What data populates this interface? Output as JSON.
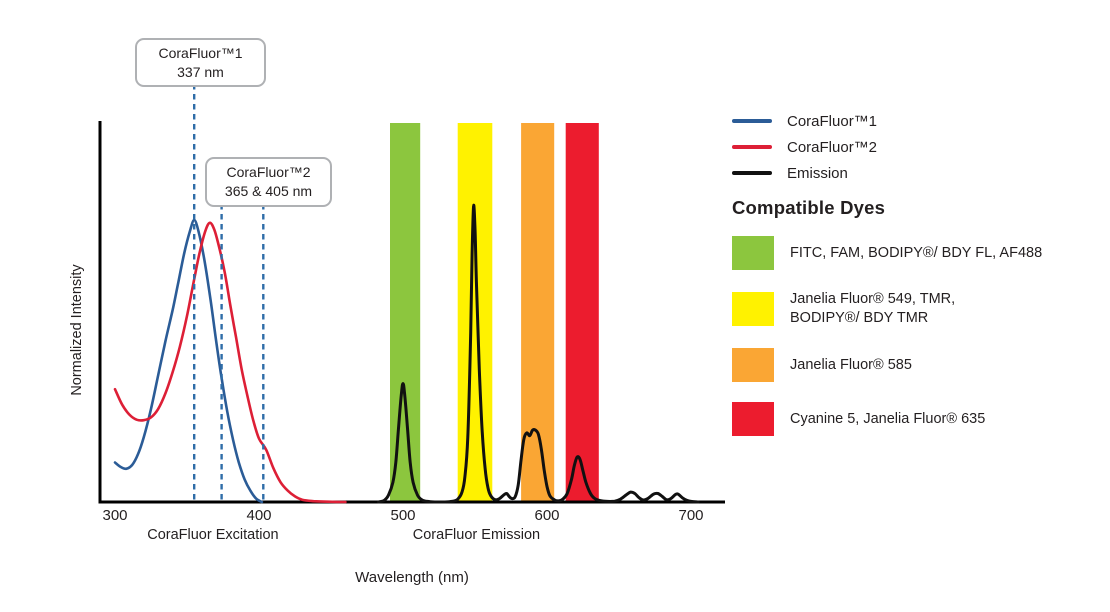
{
  "chart_data": {
    "type": "line",
    "xlabel": "Wavelength (nm)",
    "ylabel": "Normalized Intensity",
    "x_ticks": [
      300,
      400,
      500,
      600,
      700
    ],
    "x_range": [
      290,
      723
    ],
    "ylim": [
      0,
      1.35
    ],
    "grid": false,
    "axis_group_labels": [
      {
        "label": "CoraFluor Excitation",
        "center_nm": 368
      },
      {
        "label": "CoraFluor Emission",
        "center_nm": 551
      }
    ],
    "annotation_line_color": "#2f6da8",
    "annotations": [
      {
        "title": "CoraFluor™1",
        "subtitle": "337 nm",
        "lines_nm": [
          355
        ]
      },
      {
        "title": "CoraFluor™2",
        "subtitle": "365 & 405 nm",
        "lines_nm": [
          374,
          403
        ]
      }
    ],
    "bands": [
      {
        "nm": [
          491,
          512
        ],
        "color": "#8cc63e",
        "dyes": "FITC, FAM, BODIPY®/ BDY FL, AF488"
      },
      {
        "nm": [
          538,
          562
        ],
        "color": "#fff200",
        "dyes": "Janelia Fluor® 549, TMR,\nBODIPY®/ BDY TMR"
      },
      {
        "nm": [
          582,
          605
        ],
        "color": "#faa634",
        "dyes": "Janelia Fluor® 585"
      },
      {
        "nm": [
          613,
          636
        ],
        "color": "#ec1c2e",
        "dyes": "Cyanine 5, Janelia Fluor® 635"
      }
    ],
    "series": [
      {
        "name": "CoraFluor™1",
        "color": "#2b5c97",
        "points": [
          [
            300,
            0.14
          ],
          [
            304,
            0.124
          ],
          [
            308,
            0.118
          ],
          [
            312,
            0.132
          ],
          [
            316,
            0.17
          ],
          [
            320,
            0.23
          ],
          [
            325,
            0.33
          ],
          [
            330,
            0.45
          ],
          [
            335,
            0.57
          ],
          [
            340,
            0.68
          ],
          [
            344,
            0.78
          ],
          [
            348,
            0.88
          ],
          [
            352,
            0.96
          ],
          [
            355,
            1.0
          ],
          [
            358,
            0.96
          ],
          [
            362,
            0.86
          ],
          [
            366,
            0.73
          ],
          [
            370,
            0.58
          ],
          [
            374,
            0.44
          ],
          [
            378,
            0.32
          ],
          [
            382,
            0.22
          ],
          [
            386,
            0.14
          ],
          [
            390,
            0.08
          ],
          [
            394,
            0.04
          ],
          [
            398,
            0.012
          ],
          [
            402,
            0
          ]
        ]
      },
      {
        "name": "CoraFluor™2",
        "color": "#dd1f36",
        "points": [
          [
            300,
            0.4
          ],
          [
            305,
            0.345
          ],
          [
            310,
            0.31
          ],
          [
            315,
            0.292
          ],
          [
            320,
            0.29
          ],
          [
            325,
            0.3
          ],
          [
            330,
            0.33
          ],
          [
            335,
            0.385
          ],
          [
            340,
            0.46
          ],
          [
            345,
            0.55
          ],
          [
            350,
            0.66
          ],
          [
            355,
            0.79
          ],
          [
            359,
            0.89
          ],
          [
            363,
            0.965
          ],
          [
            366,
            0.99
          ],
          [
            369,
            0.965
          ],
          [
            372,
            0.91
          ],
          [
            376,
            0.82
          ],
          [
            380,
            0.7
          ],
          [
            384,
            0.585
          ],
          [
            388,
            0.47
          ],
          [
            392,
            0.375
          ],
          [
            396,
            0.29
          ],
          [
            400,
            0.225
          ],
          [
            405,
            0.185
          ],
          [
            410,
            0.12
          ],
          [
            415,
            0.07
          ],
          [
            420,
            0.04
          ],
          [
            425,
            0.02
          ],
          [
            430,
            0.008
          ],
          [
            438,
            0.003
          ],
          [
            448,
            0.001
          ],
          [
            460,
            0
          ]
        ]
      },
      {
        "name": "Emission",
        "color": "#111111",
        "points": [
          [
            483,
            0
          ],
          [
            487,
            0.006
          ],
          [
            490,
            0.025
          ],
          [
            493,
            0.07
          ],
          [
            495,
            0.14
          ],
          [
            497,
            0.27
          ],
          [
            499,
            0.39
          ],
          [
            500,
            0.42
          ],
          [
            501,
            0.39
          ],
          [
            503,
            0.27
          ],
          [
            505,
            0.14
          ],
          [
            507,
            0.07
          ],
          [
            510,
            0.025
          ],
          [
            513,
            0.008
          ],
          [
            517,
            0.002
          ],
          [
            522,
            0
          ],
          [
            528,
            0
          ],
          [
            534,
            0.002
          ],
          [
            538,
            0.01
          ],
          [
            541,
            0.035
          ],
          [
            543,
            0.09
          ],
          [
            545,
            0.23
          ],
          [
            547,
            0.6
          ],
          [
            548,
            0.88
          ],
          [
            549,
            1.05
          ],
          [
            550,
            0.97
          ],
          [
            551,
            0.78
          ],
          [
            553,
            0.47
          ],
          [
            555,
            0.25
          ],
          [
            557,
            0.12
          ],
          [
            559,
            0.05
          ],
          [
            561,
            0.022
          ],
          [
            564,
            0.008
          ],
          [
            567,
            0.012
          ],
          [
            570,
            0.025
          ],
          [
            572,
            0.03
          ],
          [
            574,
            0.018
          ],
          [
            576,
            0.012
          ],
          [
            578,
            0.02
          ],
          [
            580,
            0.06
          ],
          [
            582,
            0.15
          ],
          [
            584,
            0.225
          ],
          [
            586,
            0.245
          ],
          [
            588,
            0.235
          ],
          [
            590,
            0.255
          ],
          [
            592,
            0.255
          ],
          [
            594,
            0.24
          ],
          [
            596,
            0.19
          ],
          [
            598,
            0.115
          ],
          [
            600,
            0.055
          ],
          [
            602,
            0.022
          ],
          [
            605,
            0.008
          ],
          [
            608,
            0.004
          ],
          [
            611,
            0.01
          ],
          [
            614,
            0.03
          ],
          [
            617,
            0.08
          ],
          [
            619,
            0.13
          ],
          [
            621,
            0.16
          ],
          [
            623,
            0.15
          ],
          [
            625,
            0.11
          ],
          [
            627,
            0.07
          ],
          [
            630,
            0.032
          ],
          [
            633,
            0.013
          ],
          [
            637,
            0.005
          ],
          [
            642,
            0.002
          ],
          [
            647,
            0.003
          ],
          [
            651,
            0.01
          ],
          [
            655,
            0.025
          ],
          [
            658,
            0.035
          ],
          [
            661,
            0.03
          ],
          [
            664,
            0.015
          ],
          [
            667,
            0.007
          ],
          [
            670,
            0.012
          ],
          [
            674,
            0.028
          ],
          [
            677,
            0.03
          ],
          [
            680,
            0.02
          ],
          [
            683,
            0.008
          ],
          [
            686,
            0.012
          ],
          [
            689,
            0.026
          ],
          [
            691,
            0.028
          ],
          [
            694,
            0.015
          ],
          [
            697,
            0.006
          ],
          [
            700,
            0.002
          ],
          [
            705,
            0
          ]
        ]
      }
    ]
  },
  "legend": {
    "items": [
      {
        "label": "CoraFluor™1",
        "color": "#2b5c97"
      },
      {
        "label": "CoraFluor™2",
        "color": "#dd1f36"
      },
      {
        "label": "Emission",
        "color": "#111111"
      }
    ]
  },
  "dyes": {
    "heading": "Compatible Dyes",
    "items": [
      {
        "color": "#8cc63e",
        "label": "FITC, FAM, BODIPY®/ BDY FL, AF488"
      },
      {
        "color": "#fff200",
        "label": "Janelia Fluor® 549, TMR,\nBODIPY®/ BDY TMR"
      },
      {
        "color": "#faa634",
        "label": "Janelia Fluor® 585"
      },
      {
        "color": "#ec1c2e",
        "label": "Cyanine 5, Janelia Fluor® 635"
      }
    ]
  }
}
